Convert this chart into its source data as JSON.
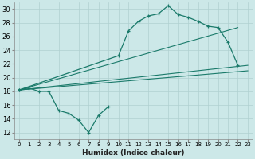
{
  "xlabel": "Humidex (Indice chaleur)",
  "background_color": "#cce8e8",
  "line_color": "#1a7a6a",
  "xlim": [
    -0.5,
    23.5
  ],
  "ylim": [
    11,
    31
  ],
  "xticks": [
    0,
    1,
    2,
    3,
    4,
    5,
    6,
    7,
    8,
    9,
    10,
    11,
    12,
    13,
    14,
    15,
    16,
    17,
    18,
    19,
    20,
    21,
    22,
    23
  ],
  "yticks": [
    12,
    14,
    16,
    18,
    20,
    22,
    24,
    26,
    28,
    30
  ],
  "curve1_x": [
    0,
    1,
    2,
    3,
    4,
    5,
    6,
    7,
    8,
    9
  ],
  "curve1_y": [
    18.2,
    18.5,
    18.0,
    18.0,
    15.2,
    14.8,
    13.8,
    12.0,
    14.5,
    15.8
  ],
  "curve2_x": [
    0,
    10,
    11,
    12,
    13,
    14,
    15,
    16,
    17,
    18,
    19,
    20,
    21,
    22
  ],
  "curve2_y": [
    18.2,
    23.2,
    26.8,
    28.2,
    29.0,
    29.3,
    30.5,
    29.2,
    28.8,
    28.2,
    27.5,
    27.3,
    25.2,
    21.8
  ],
  "line1_x": [
    0,
    23
  ],
  "line1_y": [
    18.2,
    21.8
  ],
  "line2_x": [
    0,
    22
  ],
  "line2_y": [
    18.2,
    27.3
  ],
  "line3_x": [
    0,
    23
  ],
  "line3_y": [
    18.2,
    21.0
  ]
}
